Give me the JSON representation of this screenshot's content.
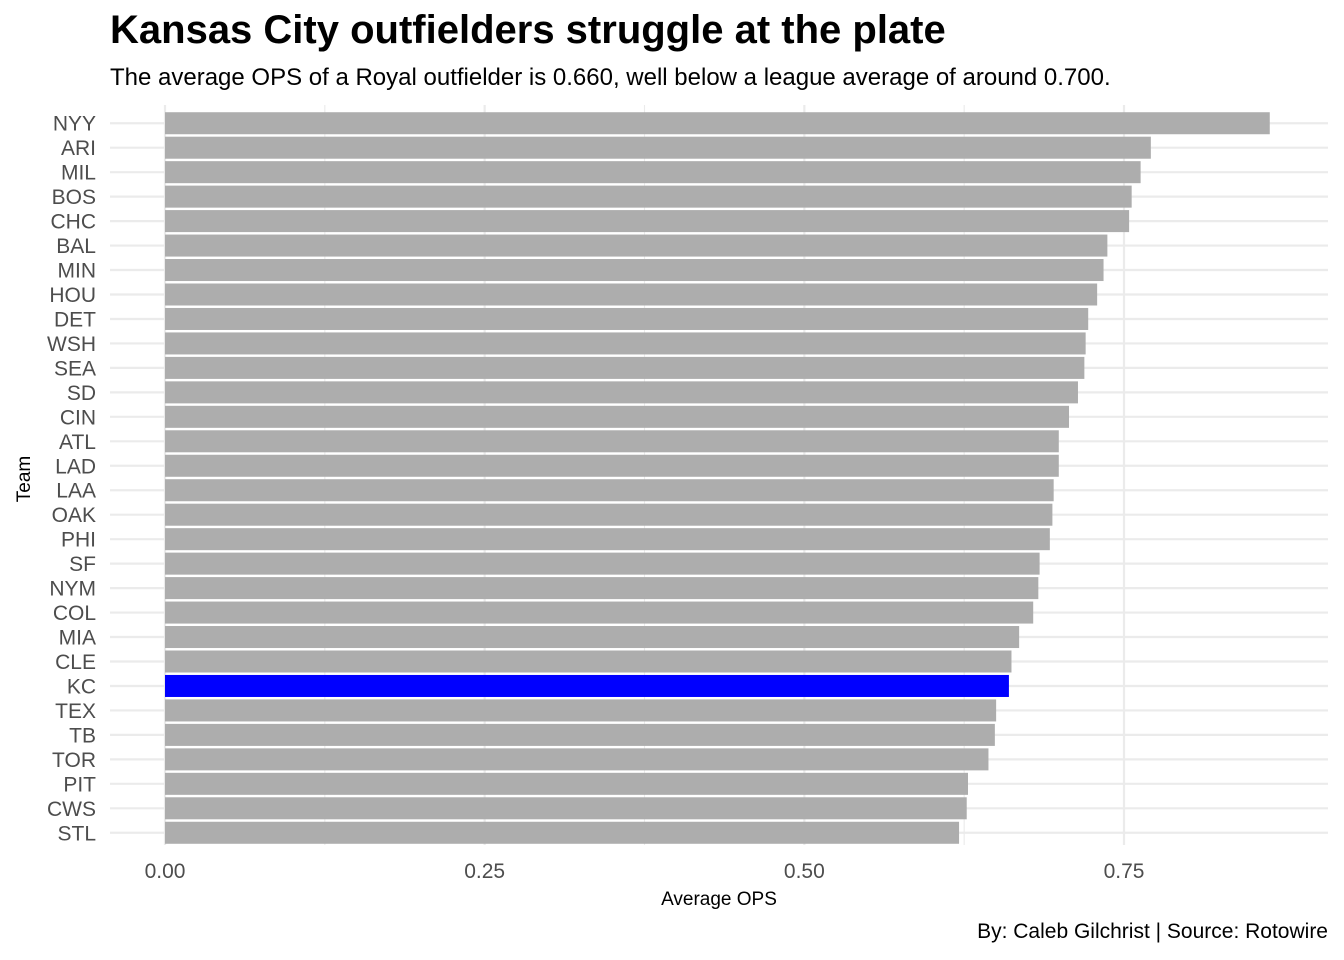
{
  "title": "Kansas City outfielders struggle at the plate",
  "subtitle": "The average OPS of a Royal outfielder is 0.660, well below a league average of around 0.700.",
  "caption": "By: Caleb Gilchrist | Source: Rotowire",
  "colors": {
    "default_bar": "#adadad",
    "highlight_bar": "#0000ff",
    "grid": "#ebebeb"
  },
  "chart_data": {
    "type": "bar",
    "orientation": "horizontal",
    "xlabel": "Average OPS",
    "ylabel": "Team",
    "xlim": [
      0,
      0.9
    ],
    "xticks": [
      {
        "value": 0,
        "label": "0.00"
      },
      {
        "value": 0.25,
        "label": "0.25"
      },
      {
        "value": 0.5,
        "label": "0.50"
      },
      {
        "value": 0.75,
        "label": "0.75"
      }
    ],
    "highlight": "KC",
    "grid": true,
    "categories": [
      "NYY",
      "ARI",
      "MIL",
      "BOS",
      "CHC",
      "BAL",
      "MIN",
      "HOU",
      "DET",
      "WSH",
      "SEA",
      "SD",
      "CIN",
      "ATL",
      "LAD",
      "LAA",
      "OAK",
      "PHI",
      "SF",
      "NYM",
      "COL",
      "MIA",
      "CLE",
      "KC",
      "TEX",
      "TB",
      "TOR",
      "PIT",
      "CWS",
      "STL"
    ],
    "values": [
      0.864,
      0.771,
      0.763,
      0.756,
      0.754,
      0.737,
      0.734,
      0.729,
      0.722,
      0.72,
      0.719,
      0.714,
      0.707,
      0.699,
      0.699,
      0.695,
      0.694,
      0.692,
      0.684,
      0.683,
      0.679,
      0.668,
      0.662,
      0.66,
      0.65,
      0.649,
      0.644,
      0.628,
      0.627,
      0.621
    ]
  }
}
